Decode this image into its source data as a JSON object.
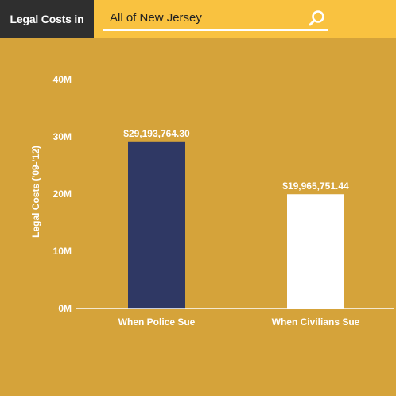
{
  "header": {
    "label": "Legal Costs in",
    "search_value": "All of New Jersey",
    "search_icon": "search-icon"
  },
  "colors": {
    "background": "#d5a33a",
    "topbar": "#f9c240",
    "label_box": "#2f2f2f",
    "bar_police": "#2f3864",
    "bar_civilians": "#ffffff"
  },
  "chart_data": {
    "type": "bar",
    "categories": [
      "When Police Sue",
      "When Civilians Sue"
    ],
    "values": [
      29193764.3,
      19965751.44
    ],
    "value_labels": [
      "$29,193,764.30",
      "$19,965,751.44"
    ],
    "ylabel": "Legal Costs ('09-'12)",
    "ylim": [
      0,
      40000000
    ],
    "yticks": [
      0,
      10000000,
      20000000,
      30000000,
      40000000
    ],
    "ytick_labels": [
      "0M",
      "10M",
      "20M",
      "30M",
      "40M"
    ],
    "grid": false
  }
}
